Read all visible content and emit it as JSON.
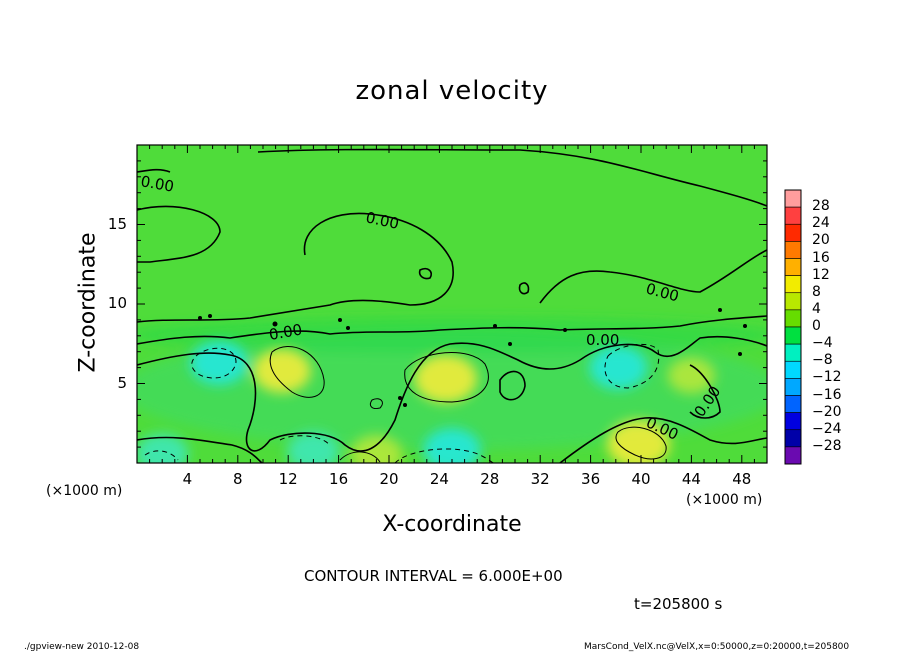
{
  "chart_data": {
    "type": "heatmap",
    "title": "zonal velocity",
    "xlabel": "X-coordinate",
    "ylabel": "Z-coordinate",
    "x_unit_label": "(×1000 m)",
    "y_unit_label": "(×1000 m)",
    "xlim": [
      0,
      50
    ],
    "ylim": [
      0,
      20
    ],
    "x_ticks": [
      4,
      8,
      12,
      16,
      20,
      24,
      28,
      32,
      36,
      40,
      44,
      48
    ],
    "y_ticks": [
      5,
      10,
      15
    ],
    "contour_interval_text": "CONTOUR INTERVAL = 6.000E+00",
    "contour_label": "0.00",
    "time_text": "t=205800 s",
    "colorbar_levels": [
      28,
      24,
      20,
      16,
      12,
      8,
      4,
      0,
      -4,
      -8,
      -12,
      -16,
      -20,
      -24,
      -28
    ],
    "colorbar_label_texts": [
      "28",
      "24",
      "20",
      "16",
      "12",
      "8",
      "4",
      "0",
      "−4",
      "−8",
      "−12",
      "−16",
      "−20",
      "−24",
      "−28"
    ],
    "colorbar_colors": [
      "#ff9d9d",
      "#ff4040",
      "#ff2a00",
      "#ff7a00",
      "#ffb000",
      "#f2ec00",
      "#b8e800",
      "#66dd00",
      "#00e040",
      "#00f0c0",
      "#00d8ff",
      "#00a8ff",
      "#0064ff",
      "#0000e0",
      "#0000a8",
      "#6a0ab0"
    ],
    "features": [
      {
        "kind": "positive",
        "x": 11.5,
        "z": 5.8,
        "value": 8
      },
      {
        "kind": "positive",
        "x": 24.5,
        "z": 5.3,
        "value": 9
      },
      {
        "kind": "positive",
        "x": 39.8,
        "z": 1.2,
        "value": 9
      },
      {
        "kind": "positive",
        "x": 44.0,
        "z": 5.5,
        "value": 6
      },
      {
        "kind": "positive",
        "x": 19.0,
        "z": 0.5,
        "value": 7
      },
      {
        "kind": "negative",
        "x": 6.5,
        "z": 6.3,
        "value": -8
      },
      {
        "kind": "negative",
        "x": 38.2,
        "z": 6.0,
        "value": -8
      },
      {
        "kind": "negative",
        "x": 25.0,
        "z": 0.8,
        "value": -8
      },
      {
        "kind": "negative",
        "x": 14.0,
        "z": 0.7,
        "value": -7
      },
      {
        "kind": "negative",
        "x": 2.0,
        "z": 0.6,
        "value": -7
      }
    ]
  },
  "footer": {
    "left": "./gpview-new  2010-12-08",
    "right": "MarsCond_VelX.nc@VelX,x=0:50000,z=0:20000,t=205800"
  }
}
